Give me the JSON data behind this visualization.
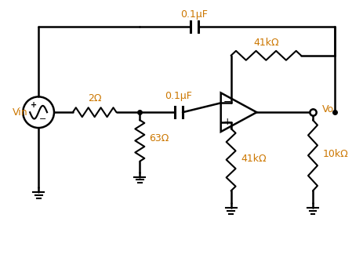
{
  "bg_color": "#ffffff",
  "line_color": "#000000",
  "label_color": "#cc7700",
  "labels": {
    "vin": "Vin",
    "r1": "2Ω",
    "r2": "63Ω",
    "r3": "41kΩ",
    "r4": "41kΩ",
    "r5": "10kΩ",
    "c1": "0.1μF",
    "c2": "0.1μF",
    "vo": "Vo"
  }
}
